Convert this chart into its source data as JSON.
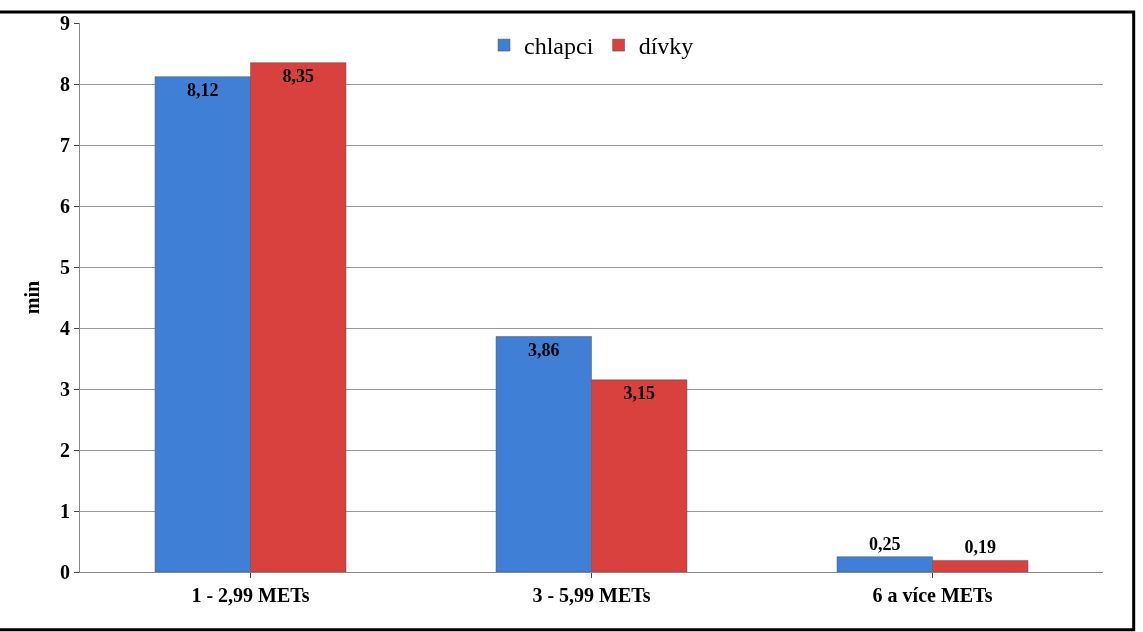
{
  "chart_data": {
    "type": "bar",
    "ylabel": "min",
    "categories": [
      "1 - 2,99 METs",
      "3 - 5,99 METs",
      "6 a více METs"
    ],
    "series": [
      {
        "name": "chlapci",
        "color": "#3f7fd6",
        "values": [
          8.12,
          3.86,
          0.25
        ],
        "value_labels": [
          "8,12",
          "3,86",
          "0,25"
        ]
      },
      {
        "name": "dívky",
        "color": "#d8413d",
        "values": [
          8.35,
          3.15,
          0.19
        ],
        "value_labels": [
          "8,35",
          "3,15",
          "0,19"
        ]
      }
    ],
    "ylim": [
      0,
      9
    ],
    "yticks": [
      0,
      1,
      2,
      3,
      4,
      5,
      6,
      7,
      8,
      9
    ],
    "grid": "y",
    "legend": "top"
  }
}
